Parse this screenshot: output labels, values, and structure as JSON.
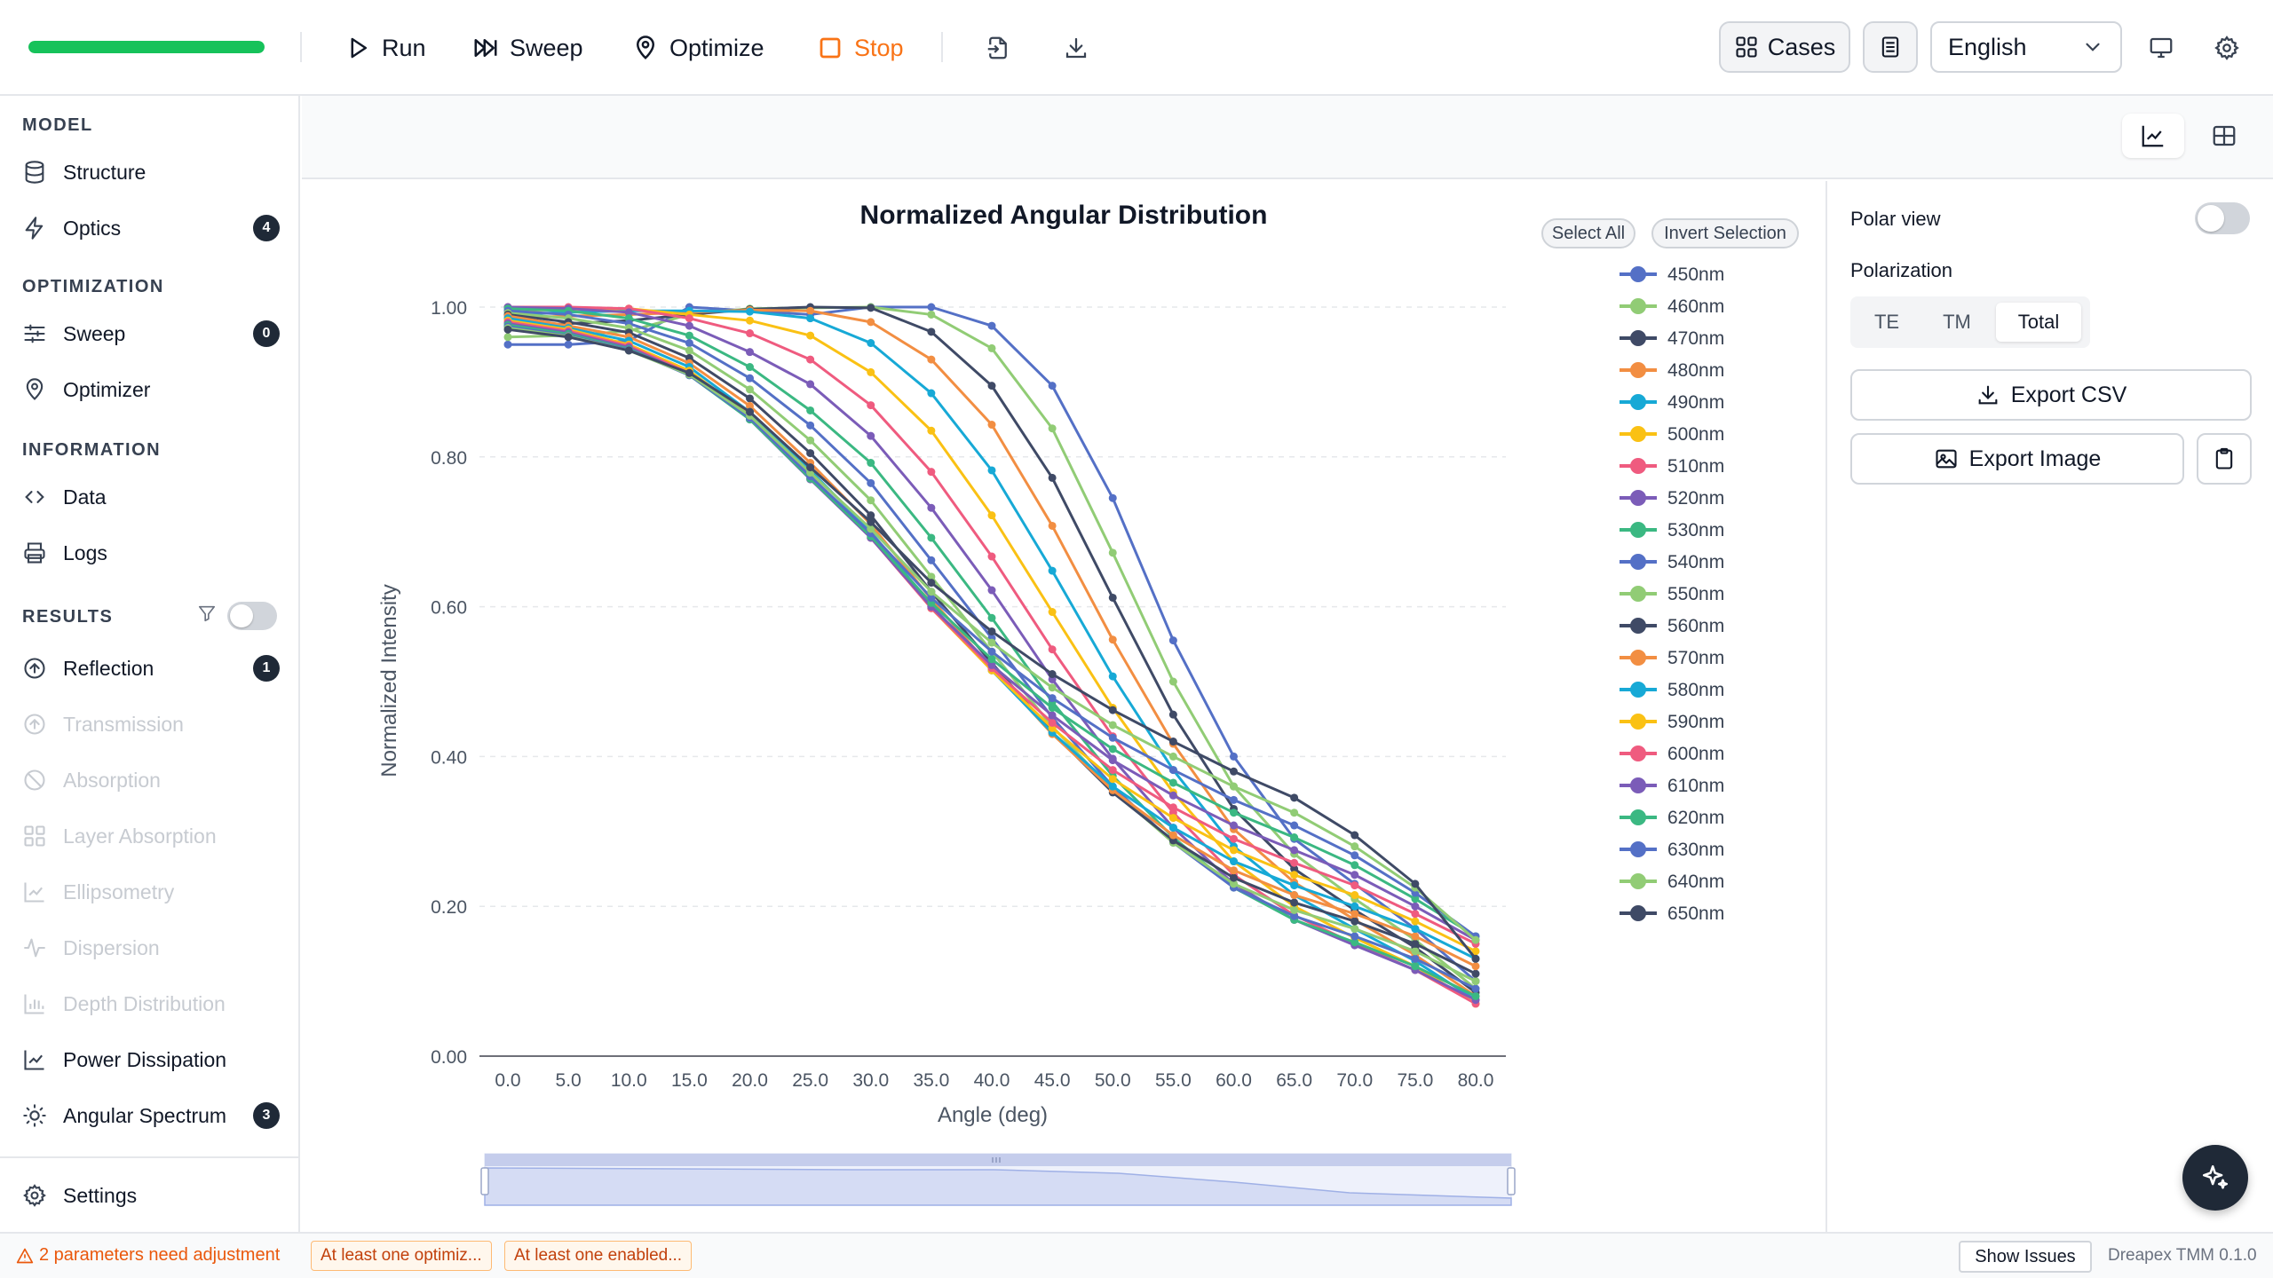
{
  "toolbar": {
    "progress_percent": 100,
    "run_label": "Run",
    "sweep_label": "Sweep",
    "optimize_label": "Optimize",
    "stop_label": "Stop",
    "cases_label": "Cases",
    "language": "English",
    "progress_color": "#16c25a",
    "stop_color": "#f97316"
  },
  "sidebar": {
    "sections": {
      "model": "MODEL",
      "optimization": "OPTIMIZATION",
      "information": "INFORMATION",
      "results": "RESULTS"
    },
    "items": {
      "structure": "Structure",
      "optics": "Optics",
      "optics_badge": "4",
      "sweep": "Sweep",
      "sweep_badge": "0",
      "optimizer": "Optimizer",
      "data": "Data",
      "logs": "Logs",
      "reflection": "Reflection",
      "reflection_badge": "1",
      "transmission": "Transmission",
      "absorption": "Absorption",
      "layer_absorption": "Layer Absorption",
      "ellipsometry": "Ellipsometry",
      "dispersion": "Dispersion",
      "depth_distribution": "Depth Distribution",
      "power_dissipation": "Power Dissipation",
      "angular_spectrum": "Angular Spectrum",
      "angular_spectrum_badge": "3",
      "settings": "Settings"
    }
  },
  "legend_controls": {
    "select_all": "Select All",
    "invert_selection": "Invert Selection"
  },
  "right_panel": {
    "polar_view_label": "Polar view",
    "polar_view_on": false,
    "polarization_label": "Polarization",
    "polarization_options": [
      "TE",
      "TM",
      "Total"
    ],
    "polarization_selected": "Total",
    "export_csv": "Export CSV",
    "export_image": "Export Image"
  },
  "status": {
    "warning": "2 parameters need adjustment",
    "chip1": "At least one optimiz...",
    "chip2": "At least one enabled...",
    "show_issues": "Show Issues",
    "version": "Dreapex TMM 0.1.0"
  },
  "chart_data": {
    "type": "line",
    "title": "Normalized Angular Distribution",
    "xlabel": "Angle (deg)",
    "ylabel": "Normalized Intensity",
    "xlim": [
      0,
      80
    ],
    "ylim": [
      0,
      1
    ],
    "x_ticks": [
      "0.0",
      "5.0",
      "10.0",
      "15.0",
      "20.0",
      "25.0",
      "30.0",
      "35.0",
      "40.0",
      "45.0",
      "50.0",
      "55.0",
      "60.0",
      "65.0",
      "70.0",
      "75.0",
      "80.0"
    ],
    "y_ticks": [
      "0.00",
      "0.20",
      "0.40",
      "0.60",
      "0.80",
      "1.00"
    ],
    "grid": true,
    "legend_position": "right",
    "x": [
      0,
      5,
      10,
      15,
      20,
      25,
      30,
      35,
      40,
      45,
      50,
      55,
      60,
      65,
      70,
      75,
      80
    ],
    "series": [
      {
        "name": "450nm",
        "color": "#5470c6",
        "values": [
          0.95,
          0.95,
          0.955,
          1.0,
          0.995,
          0.99,
          1.0,
          1.0,
          0.975,
          0.895,
          0.745,
          0.555,
          0.4,
          0.29,
          0.23,
          0.17,
          0.1
        ]
      },
      {
        "name": "460nm",
        "color": "#91cc75",
        "values": [
          0.96,
          0.962,
          0.968,
          0.99,
          0.998,
          0.999,
          1.0,
          0.99,
          0.945,
          0.838,
          0.672,
          0.5,
          0.36,
          0.27,
          0.21,
          0.155,
          0.09
        ]
      },
      {
        "name": "470nm",
        "color": "#3f4a66",
        "values": [
          0.975,
          0.978,
          0.982,
          0.99,
          0.997,
          1.0,
          0.999,
          0.967,
          0.895,
          0.772,
          0.612,
          0.456,
          0.33,
          0.25,
          0.195,
          0.145,
          0.085
        ]
      },
      {
        "name": "480nm",
        "color": "#f28e42",
        "values": [
          0.985,
          0.988,
          0.99,
          0.993,
          0.996,
          0.995,
          0.98,
          0.93,
          0.843,
          0.708,
          0.556,
          0.417,
          0.303,
          0.232,
          0.182,
          0.135,
          0.08
        ]
      },
      {
        "name": "490nm",
        "color": "#17a9d6",
        "values": [
          0.99,
          0.993,
          0.995,
          0.995,
          0.994,
          0.985,
          0.952,
          0.885,
          0.782,
          0.648,
          0.507,
          0.382,
          0.28,
          0.215,
          0.17,
          0.127,
          0.075
        ]
      },
      {
        "name": "500nm",
        "color": "#fac114",
        "values": [
          0.995,
          0.997,
          0.998,
          0.99,
          0.982,
          0.962,
          0.913,
          0.835,
          0.722,
          0.593,
          0.465,
          0.352,
          0.26,
          0.2,
          0.158,
          0.12,
          0.07
        ]
      },
      {
        "name": "510nm",
        "color": "#ef5b7f",
        "values": [
          1.0,
          1.0,
          0.998,
          0.985,
          0.965,
          0.93,
          0.869,
          0.78,
          0.667,
          0.543,
          0.427,
          0.325,
          0.242,
          0.188,
          0.15,
          0.115,
          0.07
        ]
      },
      {
        "name": "520nm",
        "color": "#7b5cb8",
        "values": [
          1.0,
          0.998,
          0.993,
          0.975,
          0.94,
          0.897,
          0.828,
          0.732,
          0.622,
          0.503,
          0.397,
          0.305,
          0.23,
          0.182,
          0.148,
          0.115,
          0.075
        ]
      },
      {
        "name": "530nm",
        "color": "#3bb882",
        "values": [
          0.998,
          0.995,
          0.985,
          0.962,
          0.92,
          0.862,
          0.792,
          0.692,
          0.585,
          0.473,
          0.374,
          0.292,
          0.225,
          0.182,
          0.152,
          0.12,
          0.08
        ]
      },
      {
        "name": "540nm",
        "color": "#5470c6",
        "values": [
          0.995,
          0.99,
          0.978,
          0.952,
          0.905,
          0.842,
          0.765,
          0.662,
          0.558,
          0.452,
          0.36,
          0.285,
          0.225,
          0.187,
          0.16,
          0.13,
          0.09
        ]
      },
      {
        "name": "550nm",
        "color": "#91cc75",
        "values": [
          0.992,
          0.985,
          0.972,
          0.942,
          0.89,
          0.822,
          0.742,
          0.64,
          0.54,
          0.44,
          0.355,
          0.285,
          0.23,
          0.195,
          0.17,
          0.14,
          0.1
        ]
      },
      {
        "name": "560nm",
        "color": "#3f4a66",
        "values": [
          0.99,
          0.98,
          0.966,
          0.932,
          0.878,
          0.805,
          0.722,
          0.62,
          0.525,
          0.432,
          0.352,
          0.288,
          0.238,
          0.205,
          0.18,
          0.15,
          0.11
        ]
      },
      {
        "name": "570nm",
        "color": "#f28e42",
        "values": [
          0.988,
          0.975,
          0.96,
          0.925,
          0.868,
          0.792,
          0.71,
          0.61,
          0.518,
          0.43,
          0.355,
          0.295,
          0.248,
          0.215,
          0.19,
          0.16,
          0.12
        ]
      },
      {
        "name": "580nm",
        "color": "#17a9d6",
        "values": [
          0.985,
          0.972,
          0.955,
          0.92,
          0.86,
          0.782,
          0.7,
          0.602,
          0.515,
          0.432,
          0.36,
          0.305,
          0.26,
          0.228,
          0.2,
          0.17,
          0.13
        ]
      },
      {
        "name": "590nm",
        "color": "#fac114",
        "values": [
          0.982,
          0.97,
          0.95,
          0.915,
          0.855,
          0.775,
          0.695,
          0.598,
          0.515,
          0.438,
          0.37,
          0.318,
          0.275,
          0.242,
          0.215,
          0.18,
          0.14
        ]
      },
      {
        "name": "600nm",
        "color": "#ef5b7f",
        "values": [
          0.98,
          0.968,
          0.948,
          0.912,
          0.852,
          0.772,
          0.692,
          0.598,
          0.518,
          0.445,
          0.382,
          0.332,
          0.29,
          0.258,
          0.228,
          0.19,
          0.15
        ]
      },
      {
        "name": "610nm",
        "color": "#7b5cb8",
        "values": [
          0.978,
          0.966,
          0.946,
          0.91,
          0.85,
          0.77,
          0.692,
          0.6,
          0.522,
          0.455,
          0.395,
          0.348,
          0.308,
          0.275,
          0.242,
          0.2,
          0.155
        ]
      },
      {
        "name": "620nm",
        "color": "#3bb882",
        "values": [
          0.976,
          0.964,
          0.944,
          0.909,
          0.85,
          0.771,
          0.694,
          0.605,
          0.53,
          0.465,
          0.41,
          0.365,
          0.325,
          0.292,
          0.255,
          0.21,
          0.16
        ]
      },
      {
        "name": "630nm",
        "color": "#5470c6",
        "values": [
          0.974,
          0.962,
          0.943,
          0.909,
          0.852,
          0.774,
          0.698,
          0.612,
          0.54,
          0.478,
          0.425,
          0.382,
          0.342,
          0.308,
          0.268,
          0.218,
          0.16
        ]
      },
      {
        "name": "640nm",
        "color": "#91cc75",
        "values": [
          0.972,
          0.961,
          0.942,
          0.91,
          0.855,
          0.779,
          0.704,
          0.62,
          0.552,
          0.492,
          0.442,
          0.4,
          0.36,
          0.325,
          0.28,
          0.225,
          0.155
        ]
      },
      {
        "name": "650nm",
        "color": "#3f4a66",
        "values": [
          0.97,
          0.96,
          0.942,
          0.912,
          0.86,
          0.786,
          0.713,
          0.632,
          0.567,
          0.51,
          0.462,
          0.42,
          0.38,
          0.345,
          0.295,
          0.23,
          0.13
        ]
      }
    ]
  }
}
